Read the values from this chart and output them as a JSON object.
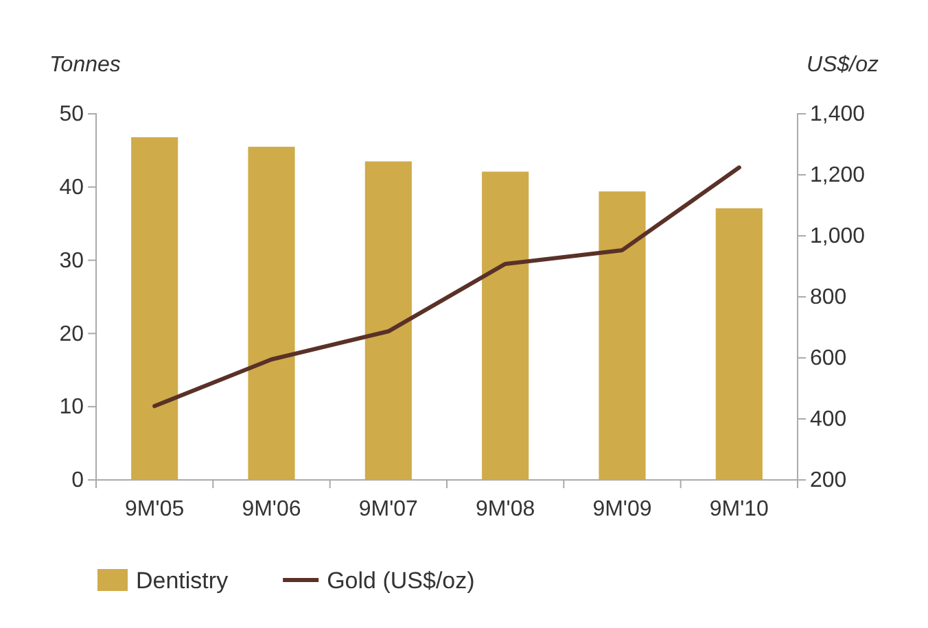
{
  "chart_data": {
    "type": "bar",
    "ylabel": "Tonnes",
    "y2label": "US$/oz",
    "categories": [
      "9M'05",
      "9M'06",
      "9M'07",
      "9M'08",
      "9M'09",
      "9M'10"
    ],
    "series": [
      {
        "name": "Dentistry",
        "color": "#cfab4a",
        "values": [
          46.8,
          45.5,
          43.5,
          42.1,
          39.4,
          37.1
        ]
      },
      {
        "name": "Gold (US$/oz)",
        "type": "line",
        "axis": "y2",
        "color": "#5a3128",
        "values": [
          442,
          595,
          687,
          908,
          953,
          1224
        ]
      }
    ],
    "ylim": [
      0,
      50
    ],
    "yticks": [
      0,
      10,
      20,
      30,
      40,
      50
    ],
    "y2lim": [
      200,
      1400
    ],
    "y2ticks": [
      200,
      400,
      600,
      800,
      {
        "value": 1000,
        "label": "1,000"
      },
      {
        "value": 1200,
        "label": "1,200"
      },
      {
        "value": 1400,
        "label": "1,400"
      }
    ],
    "grid": false,
    "legend": "bottom"
  }
}
